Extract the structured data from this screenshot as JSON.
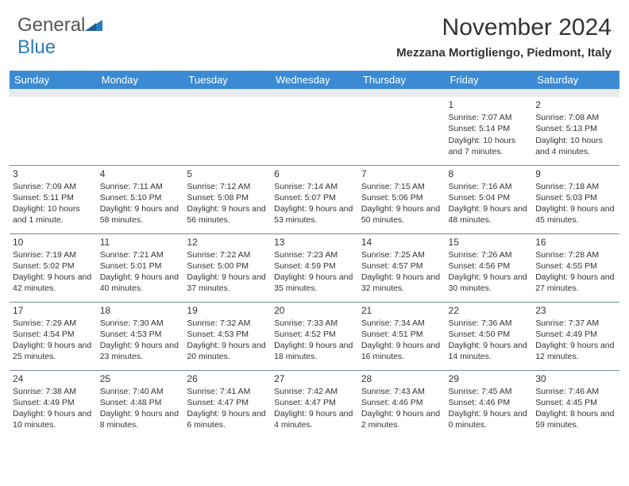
{
  "brand": {
    "name_part1": "General",
    "name_part2": "Blue",
    "primary_color": "#2b7bbf"
  },
  "header": {
    "month_title": "November 2024",
    "location": "Mezzana Mortigliengo, Piedmont, Italy"
  },
  "colors": {
    "header_row_bg": "#3b8bd4",
    "header_row_text": "#ffffff",
    "cell_border": "#7a8aa0",
    "blank_row_bg": "#e9ebee",
    "text": "#333333"
  },
  "weekdays": [
    "Sunday",
    "Monday",
    "Tuesday",
    "Wednesday",
    "Thursday",
    "Friday",
    "Saturday"
  ],
  "weeks": [
    [
      null,
      null,
      null,
      null,
      null,
      {
        "day": "1",
        "sunrise": "Sunrise: 7:07 AM",
        "sunset": "Sunset: 5:14 PM",
        "daylight": "Daylight: 10 hours and 7 minutes."
      },
      {
        "day": "2",
        "sunrise": "Sunrise: 7:08 AM",
        "sunset": "Sunset: 5:13 PM",
        "daylight": "Daylight: 10 hours and 4 minutes."
      }
    ],
    [
      {
        "day": "3",
        "sunrise": "Sunrise: 7:09 AM",
        "sunset": "Sunset: 5:11 PM",
        "daylight": "Daylight: 10 hours and 1 minute."
      },
      {
        "day": "4",
        "sunrise": "Sunrise: 7:11 AM",
        "sunset": "Sunset: 5:10 PM",
        "daylight": "Daylight: 9 hours and 58 minutes."
      },
      {
        "day": "5",
        "sunrise": "Sunrise: 7:12 AM",
        "sunset": "Sunset: 5:08 PM",
        "daylight": "Daylight: 9 hours and 56 minutes."
      },
      {
        "day": "6",
        "sunrise": "Sunrise: 7:14 AM",
        "sunset": "Sunset: 5:07 PM",
        "daylight": "Daylight: 9 hours and 53 minutes."
      },
      {
        "day": "7",
        "sunrise": "Sunrise: 7:15 AM",
        "sunset": "Sunset: 5:06 PM",
        "daylight": "Daylight: 9 hours and 50 minutes."
      },
      {
        "day": "8",
        "sunrise": "Sunrise: 7:16 AM",
        "sunset": "Sunset: 5:04 PM",
        "daylight": "Daylight: 9 hours and 48 minutes."
      },
      {
        "day": "9",
        "sunrise": "Sunrise: 7:18 AM",
        "sunset": "Sunset: 5:03 PM",
        "daylight": "Daylight: 9 hours and 45 minutes."
      }
    ],
    [
      {
        "day": "10",
        "sunrise": "Sunrise: 7:19 AM",
        "sunset": "Sunset: 5:02 PM",
        "daylight": "Daylight: 9 hours and 42 minutes."
      },
      {
        "day": "11",
        "sunrise": "Sunrise: 7:21 AM",
        "sunset": "Sunset: 5:01 PM",
        "daylight": "Daylight: 9 hours and 40 minutes."
      },
      {
        "day": "12",
        "sunrise": "Sunrise: 7:22 AM",
        "sunset": "Sunset: 5:00 PM",
        "daylight": "Daylight: 9 hours and 37 minutes."
      },
      {
        "day": "13",
        "sunrise": "Sunrise: 7:23 AM",
        "sunset": "Sunset: 4:59 PM",
        "daylight": "Daylight: 9 hours and 35 minutes."
      },
      {
        "day": "14",
        "sunrise": "Sunrise: 7:25 AM",
        "sunset": "Sunset: 4:57 PM",
        "daylight": "Daylight: 9 hours and 32 minutes."
      },
      {
        "day": "15",
        "sunrise": "Sunrise: 7:26 AM",
        "sunset": "Sunset: 4:56 PM",
        "daylight": "Daylight: 9 hours and 30 minutes."
      },
      {
        "day": "16",
        "sunrise": "Sunrise: 7:28 AM",
        "sunset": "Sunset: 4:55 PM",
        "daylight": "Daylight: 9 hours and 27 minutes."
      }
    ],
    [
      {
        "day": "17",
        "sunrise": "Sunrise: 7:29 AM",
        "sunset": "Sunset: 4:54 PM",
        "daylight": "Daylight: 9 hours and 25 minutes."
      },
      {
        "day": "18",
        "sunrise": "Sunrise: 7:30 AM",
        "sunset": "Sunset: 4:53 PM",
        "daylight": "Daylight: 9 hours and 23 minutes."
      },
      {
        "day": "19",
        "sunrise": "Sunrise: 7:32 AM",
        "sunset": "Sunset: 4:53 PM",
        "daylight": "Daylight: 9 hours and 20 minutes."
      },
      {
        "day": "20",
        "sunrise": "Sunrise: 7:33 AM",
        "sunset": "Sunset: 4:52 PM",
        "daylight": "Daylight: 9 hours and 18 minutes."
      },
      {
        "day": "21",
        "sunrise": "Sunrise: 7:34 AM",
        "sunset": "Sunset: 4:51 PM",
        "daylight": "Daylight: 9 hours and 16 minutes."
      },
      {
        "day": "22",
        "sunrise": "Sunrise: 7:36 AM",
        "sunset": "Sunset: 4:50 PM",
        "daylight": "Daylight: 9 hours and 14 minutes."
      },
      {
        "day": "23",
        "sunrise": "Sunrise: 7:37 AM",
        "sunset": "Sunset: 4:49 PM",
        "daylight": "Daylight: 9 hours and 12 minutes."
      }
    ],
    [
      {
        "day": "24",
        "sunrise": "Sunrise: 7:38 AM",
        "sunset": "Sunset: 4:49 PM",
        "daylight": "Daylight: 9 hours and 10 minutes."
      },
      {
        "day": "25",
        "sunrise": "Sunrise: 7:40 AM",
        "sunset": "Sunset: 4:48 PM",
        "daylight": "Daylight: 9 hours and 8 minutes."
      },
      {
        "day": "26",
        "sunrise": "Sunrise: 7:41 AM",
        "sunset": "Sunset: 4:47 PM",
        "daylight": "Daylight: 9 hours and 6 minutes."
      },
      {
        "day": "27",
        "sunrise": "Sunrise: 7:42 AM",
        "sunset": "Sunset: 4:47 PM",
        "daylight": "Daylight: 9 hours and 4 minutes."
      },
      {
        "day": "28",
        "sunrise": "Sunrise: 7:43 AM",
        "sunset": "Sunset: 4:46 PM",
        "daylight": "Daylight: 9 hours and 2 minutes."
      },
      {
        "day": "29",
        "sunrise": "Sunrise: 7:45 AM",
        "sunset": "Sunset: 4:46 PM",
        "daylight": "Daylight: 9 hours and 0 minutes."
      },
      {
        "day": "30",
        "sunrise": "Sunrise: 7:46 AM",
        "sunset": "Sunset: 4:45 PM",
        "daylight": "Daylight: 8 hours and 59 minutes."
      }
    ]
  ]
}
